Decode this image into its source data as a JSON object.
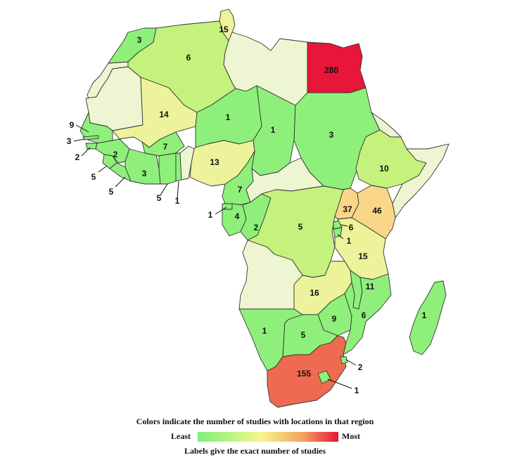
{
  "legend": {
    "title": "Colors indicate the number of studies with locations in that region",
    "least": "Least",
    "most": "Most",
    "note": "Labels give the exact number of studies",
    "gradient": [
      "#7cf07c",
      "#f6f68a",
      "#f3a060",
      "#e8163a"
    ]
  },
  "palette": {
    "none": "#eef5d2",
    "low": "#8ef07a",
    "lowmid": "#c4f27c",
    "mid": "#ecf39a",
    "midhigh": "#fad788",
    "high": "#ee6a50",
    "max": "#e8163a"
  },
  "countries": {
    "morocco": {
      "name": "Morocco",
      "value": "3"
    },
    "algeria": {
      "name": "Algeria",
      "value": "6"
    },
    "tunisia": {
      "name": "Tunisia",
      "value": "15"
    },
    "egypt": {
      "name": "Egypt",
      "value": "280"
    },
    "mali": {
      "name": "Mali",
      "value": "14"
    },
    "niger": {
      "name": "Niger",
      "value": "1"
    },
    "chad": {
      "name": "Chad",
      "value": "1"
    },
    "sudan": {
      "name": "Sudan",
      "value": "3"
    },
    "senegal": {
      "name": "Senegal",
      "value": "9"
    },
    "gambia": {
      "name": "Gambia",
      "value": "3"
    },
    "guinea_bissau": {
      "name": "Guinea-Bissau",
      "value": "2"
    },
    "guinea": {
      "name": "Guinea",
      "value": "2"
    },
    "sierra_leone": {
      "name": "Sierra Leone",
      "value": "5"
    },
    "liberia": {
      "name": "Liberia",
      "value": "5"
    },
    "cote_divoire": {
      "name": "Cote d'Ivoire",
      "value": "3"
    },
    "burkina_faso": {
      "name": "Burkina Faso",
      "value": "7"
    },
    "ghana": {
      "name": "Ghana",
      "value": "5"
    },
    "togo": {
      "name": "Togo",
      "value": "1"
    },
    "nigeria": {
      "name": "Nigeria",
      "value": "13"
    },
    "cameroon": {
      "name": "Cameroon",
      "value": "7"
    },
    "equatorial_guinea": {
      "name": "Equatorial Guinea",
      "value": "1"
    },
    "gabon": {
      "name": "Gabon",
      "value": "4"
    },
    "congo": {
      "name": "Congo",
      "value": "2"
    },
    "drc": {
      "name": "DR Congo",
      "value": "5"
    },
    "ethiopia": {
      "name": "Ethiopia",
      "value": "10"
    },
    "uganda": {
      "name": "Uganda",
      "value": "37"
    },
    "kenya": {
      "name": "Kenya",
      "value": "46"
    },
    "rwanda": {
      "name": "Rwanda",
      "value": "6"
    },
    "burundi": {
      "name": "Burundi",
      "value": "1"
    },
    "tanzania": {
      "name": "Tanzania",
      "value": "15"
    },
    "zambia": {
      "name": "Zambia",
      "value": "16"
    },
    "malawi": {
      "name": "Malawi",
      "value": "11"
    },
    "zimbabwe": {
      "name": "Zimbabwe",
      "value": "9"
    },
    "mozambique": {
      "name": "Mozambique",
      "value": "6"
    },
    "namibia": {
      "name": "Namibia",
      "value": "1"
    },
    "botswana": {
      "name": "Botswana",
      "value": "5"
    },
    "south_africa": {
      "name": "South Africa",
      "value": "155"
    },
    "swaziland": {
      "name": "Swaziland",
      "value": "2"
    },
    "lesotho": {
      "name": "Lesotho",
      "value": "1"
    },
    "madagascar": {
      "name": "Madagascar",
      "value": "1"
    }
  }
}
